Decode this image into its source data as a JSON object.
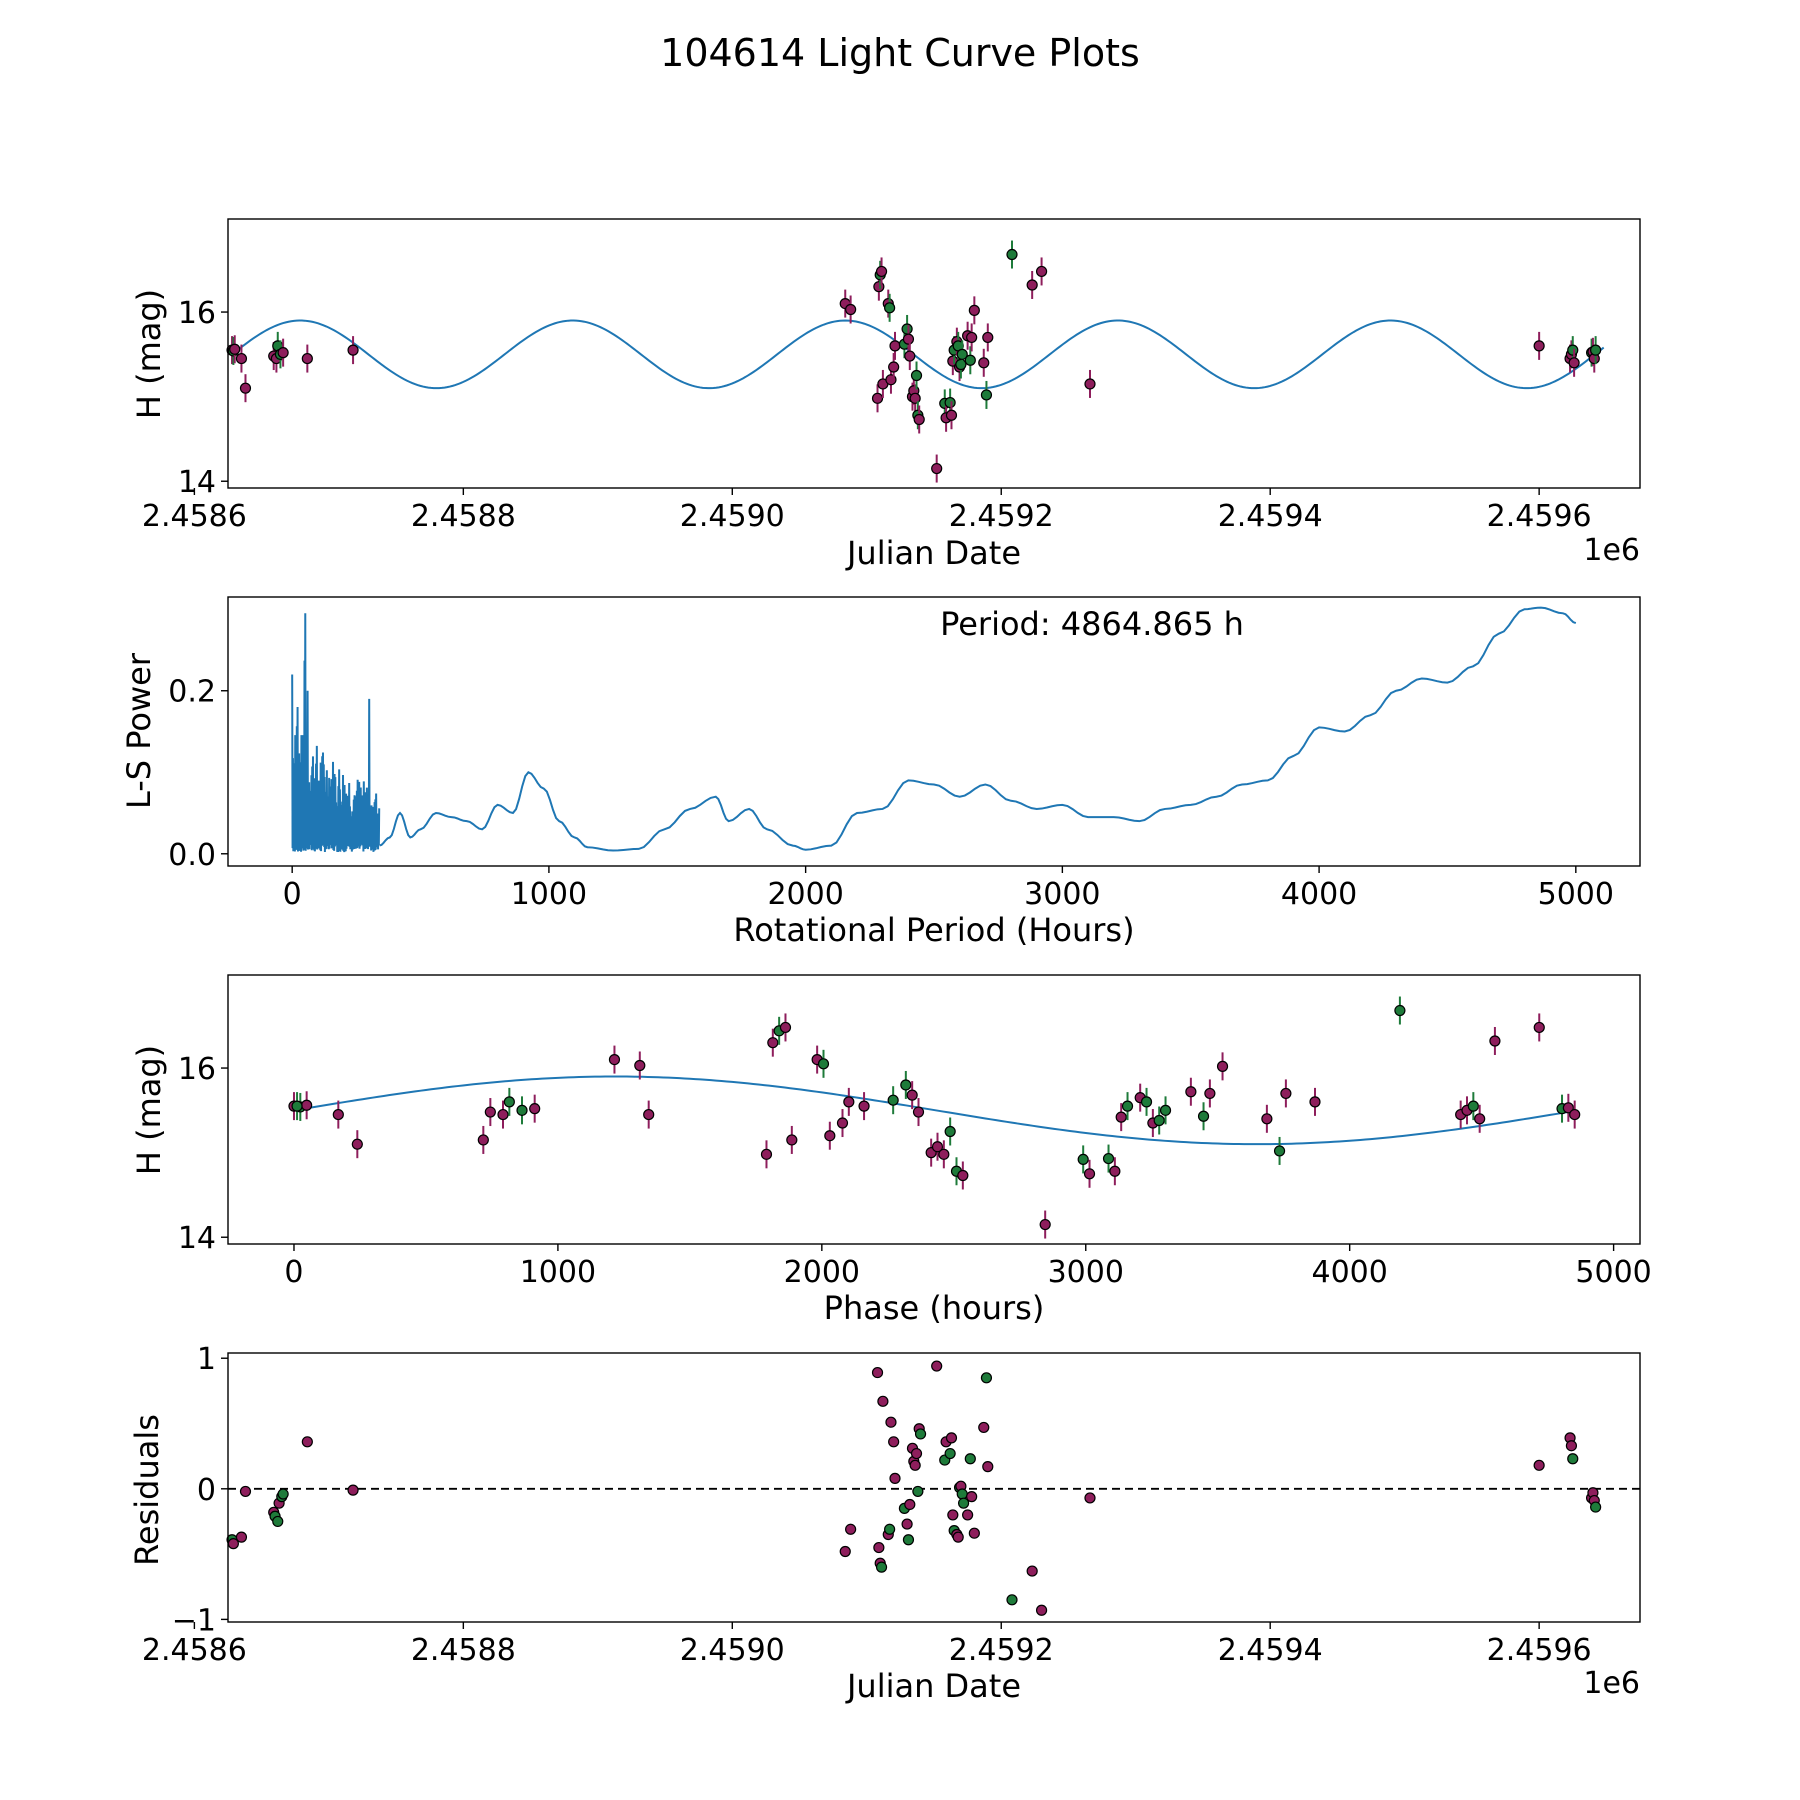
{
  "title": "104614 Light Curve Plots",
  "colors": {
    "line": "#1f77b4",
    "point_a": "#8e1e5c",
    "point_b": "#1e7b3a",
    "marker_edge": "#000000"
  },
  "chart_data": [
    {
      "id": "lightcurve",
      "type": "scatter",
      "xlabel": "Julian Date",
      "ylabel": "H (mag)",
      "x_offset_label": "1e6",
      "xlim": [
        2458.625,
        2459.675
      ],
      "ylim": [
        13.92,
        17.1
      ],
      "xticks": [
        2458.6,
        2458.8,
        2459.0,
        2459.2,
        2459.4,
        2459.6
      ],
      "xtick_labels": [
        "2.4586",
        "2.4588",
        "2.4590",
        "2.4592",
        "2.4594",
        "2.4596"
      ],
      "yticks": [
        14,
        16
      ],
      "ytick_labels": [
        "14",
        "16"
      ],
      "model": {
        "mean": 15.5,
        "amplitude": 0.4,
        "period_days": 202.7,
        "phase_zero_jd": 2458628.0,
        "phase_start_hours": 0,
        "x_range": [
          2458628.0,
          2459648.0
        ]
      },
      "points": [
        {
          "jd": 2458628,
          "h": 15.55,
          "band": "a"
        },
        {
          "jd": 2458629,
          "h": 15.54,
          "band": "b"
        },
        {
          "jd": 2458630,
          "h": 15.56,
          "band": "a"
        },
        {
          "jd": 2458635,
          "h": 15.45,
          "band": "a"
        },
        {
          "jd": 2458638,
          "h": 15.1,
          "band": "a"
        },
        {
          "jd": 2458659,
          "h": 15.48,
          "band": "a"
        },
        {
          "jd": 2458661,
          "h": 15.45,
          "band": "a"
        },
        {
          "jd": 2458662,
          "h": 15.6,
          "band": "b"
        },
        {
          "jd": 2458664,
          "h": 15.5,
          "band": "b"
        },
        {
          "jd": 2458666,
          "h": 15.52,
          "band": "a"
        },
        {
          "jd": 2458684,
          "h": 15.45,
          "band": "a"
        },
        {
          "jd": 2458718,
          "h": 15.55,
          "band": "a"
        },
        {
          "jd": 2459084,
          "h": 16.1,
          "band": "a"
        },
        {
          "jd": 2459088,
          "h": 16.03,
          "band": "a"
        },
        {
          "jd": 2459108,
          "h": 14.98,
          "band": "a"
        },
        {
          "jd": 2459109,
          "h": 16.3,
          "band": "a"
        },
        {
          "jd": 2459110,
          "h": 16.44,
          "band": "b"
        },
        {
          "jd": 2459111,
          "h": 16.48,
          "band": "a"
        },
        {
          "jd": 2459112,
          "h": 15.15,
          "band": "a"
        },
        {
          "jd": 2459116,
          "h": 16.1,
          "band": "a"
        },
        {
          "jd": 2459117,
          "h": 16.05,
          "band": "b"
        },
        {
          "jd": 2459118,
          "h": 15.2,
          "band": "a"
        },
        {
          "jd": 2459120,
          "h": 15.35,
          "band": "a"
        },
        {
          "jd": 2459121,
          "h": 15.6,
          "band": "a"
        },
        {
          "jd": 2459128,
          "h": 15.62,
          "band": "b"
        },
        {
          "jd": 2459130,
          "h": 15.8,
          "band": "b"
        },
        {
          "jd": 2459131,
          "h": 15.68,
          "band": "a"
        },
        {
          "jd": 2459132,
          "h": 15.48,
          "band": "a"
        },
        {
          "jd": 2459134,
          "h": 15.0,
          "band": "a"
        },
        {
          "jd": 2459135,
          "h": 15.07,
          "band": "a"
        },
        {
          "jd": 2459136,
          "h": 14.98,
          "band": "a"
        },
        {
          "jd": 2459137,
          "h": 15.25,
          "band": "b"
        },
        {
          "jd": 2459138,
          "h": 14.78,
          "band": "b"
        },
        {
          "jd": 2459139,
          "h": 14.73,
          "band": "a"
        },
        {
          "jd": 2459152,
          "h": 14.15,
          "band": "a"
        },
        {
          "jd": 2459158,
          "h": 14.92,
          "band": "b"
        },
        {
          "jd": 2459159,
          "h": 14.75,
          "band": "a"
        },
        {
          "jd": 2459162,
          "h": 14.93,
          "band": "b"
        },
        {
          "jd": 2459163,
          "h": 14.78,
          "band": "a"
        },
        {
          "jd": 2459164,
          "h": 15.42,
          "band": "a"
        },
        {
          "jd": 2459165,
          "h": 15.55,
          "band": "b"
        },
        {
          "jd": 2459167,
          "h": 15.65,
          "band": "a"
        },
        {
          "jd": 2459168,
          "h": 15.6,
          "band": "b"
        },
        {
          "jd": 2459169,
          "h": 15.35,
          "band": "a"
        },
        {
          "jd": 2459170,
          "h": 15.38,
          "band": "b"
        },
        {
          "jd": 2459171,
          "h": 15.5,
          "band": "b"
        },
        {
          "jd": 2459175,
          "h": 15.72,
          "band": "a"
        },
        {
          "jd": 2459177,
          "h": 15.43,
          "band": "b"
        },
        {
          "jd": 2459178,
          "h": 15.7,
          "band": "a"
        },
        {
          "jd": 2459180,
          "h": 16.02,
          "band": "a"
        },
        {
          "jd": 2459187,
          "h": 15.4,
          "band": "a"
        },
        {
          "jd": 2459189,
          "h": 15.02,
          "band": "b"
        },
        {
          "jd": 2459190,
          "h": 15.7,
          "band": "a"
        },
        {
          "jd": 2459208,
          "h": 16.68,
          "band": "b"
        },
        {
          "jd": 2459223,
          "h": 16.32,
          "band": "a"
        },
        {
          "jd": 2459230,
          "h": 16.48,
          "band": "a"
        },
        {
          "jd": 2459266,
          "h": 15.15,
          "band": "a"
        },
        {
          "jd": 2459600,
          "h": 15.6,
          "band": "a"
        },
        {
          "jd": 2459623,
          "h": 15.45,
          "band": "a"
        },
        {
          "jd": 2459624,
          "h": 15.5,
          "band": "a"
        },
        {
          "jd": 2459625,
          "h": 15.55,
          "band": "b"
        },
        {
          "jd": 2459626,
          "h": 15.4,
          "band": "a"
        },
        {
          "jd": 2459639,
          "h": 15.52,
          "band": "b"
        },
        {
          "jd": 2459640,
          "h": 15.53,
          "band": "a"
        },
        {
          "jd": 2459641,
          "h": 15.45,
          "band": "a"
        },
        {
          "jd": 2459642,
          "h": 15.55,
          "band": "b"
        }
      ]
    },
    {
      "id": "periodogram",
      "type": "line",
      "xlabel": "Rotational Period (Hours)",
      "ylabel": "L-S Power",
      "annotation": "Period: 4864.865 h",
      "xlim": [
        -250,
        5250
      ],
      "ylim": [
        -0.015,
        0.315
      ],
      "xticks": [
        0,
        1000,
        2000,
        3000,
        4000,
        5000
      ],
      "xtick_labels": [
        "0",
        "1000",
        "2000",
        "3000",
        "4000",
        "5000"
      ],
      "yticks": [
        0.0,
        0.2
      ],
      "ytick_labels": [
        "0.0",
        "0.2"
      ],
      "best_period_h": 4864.865,
      "power_anchors": [
        [
          340,
          0.01
        ],
        [
          380,
          0.02
        ],
        [
          420,
          0.05
        ],
        [
          460,
          0.02
        ],
        [
          500,
          0.03
        ],
        [
          560,
          0.05
        ],
        [
          620,
          0.045
        ],
        [
          680,
          0.04
        ],
        [
          740,
          0.03
        ],
        [
          800,
          0.06
        ],
        [
          860,
          0.05
        ],
        [
          920,
          0.1
        ],
        [
          980,
          0.08
        ],
        [
          1040,
          0.04
        ],
        [
          1100,
          0.02
        ],
        [
          1150,
          0.008
        ],
        [
          1250,
          0.004
        ],
        [
          1350,
          0.006
        ],
        [
          1450,
          0.03
        ],
        [
          1550,
          0.055
        ],
        [
          1650,
          0.07
        ],
        [
          1700,
          0.04
        ],
        [
          1780,
          0.055
        ],
        [
          1850,
          0.03
        ],
        [
          1950,
          0.01
        ],
        [
          2000,
          0.005
        ],
        [
          2100,
          0.01
        ],
        [
          2200,
          0.05
        ],
        [
          2300,
          0.055
        ],
        [
          2400,
          0.09
        ],
        [
          2500,
          0.085
        ],
        [
          2600,
          0.07
        ],
        [
          2700,
          0.085
        ],
        [
          2800,
          0.065
        ],
        [
          2900,
          0.055
        ],
        [
          3000,
          0.06
        ],
        [
          3100,
          0.045
        ],
        [
          3200,
          0.045
        ],
        [
          3300,
          0.04
        ],
        [
          3400,
          0.055
        ],
        [
          3500,
          0.06
        ],
        [
          3600,
          0.07
        ],
        [
          3700,
          0.085
        ],
        [
          3800,
          0.09
        ],
        [
          3900,
          0.12
        ],
        [
          4000,
          0.155
        ],
        [
          4100,
          0.15
        ],
        [
          4200,
          0.17
        ],
        [
          4300,
          0.2
        ],
        [
          4400,
          0.215
        ],
        [
          4500,
          0.21
        ],
        [
          4600,
          0.23
        ],
        [
          4700,
          0.27
        ],
        [
          4800,
          0.3
        ],
        [
          4864,
          0.302
        ],
        [
          4950,
          0.295
        ],
        [
          5000,
          0.283
        ]
      ],
      "noise_region": {
        "x_range": [
          0,
          340
        ],
        "peaks": [
          [
            0,
            0.22
          ],
          [
            20,
            0.18
          ],
          [
            50,
            0.295
          ],
          [
            60,
            0.2
          ],
          [
            300,
            0.19
          ]
        ]
      }
    },
    {
      "id": "folded",
      "type": "scatter",
      "xlabel": "Phase (hours)",
      "ylabel": "H (mag)",
      "xlim": [
        -250,
        5100
      ],
      "ylim": [
        13.92,
        17.1
      ],
      "xticks": [
        0,
        1000,
        2000,
        3000,
        4000,
        5000
      ],
      "xtick_labels": [
        "0",
        "1000",
        "2000",
        "3000",
        "4000",
        "5000"
      ],
      "yticks": [
        14,
        16
      ],
      "ytick_labels": [
        "14",
        "16"
      ],
      "points_from": "lightcurve",
      "period_h": 4864.865
    },
    {
      "id": "residuals",
      "type": "scatter",
      "xlabel": "Julian Date",
      "ylabel": "Residuals",
      "x_offset_label": "1e6",
      "xlim": [
        2458.625,
        2459.675
      ],
      "ylim": [
        -1.02,
        1.04
      ],
      "xticks": [
        2458.6,
        2458.8,
        2459.0,
        2459.2,
        2459.4,
        2459.6
      ],
      "xtick_labels": [
        "2.4586",
        "2.4588",
        "2.4590",
        "2.4592",
        "2.4594",
        "2.4596"
      ],
      "yticks": [
        -1,
        0,
        1
      ],
      "ytick_labels": [
        "−1",
        "0",
        "1"
      ],
      "zero_line": true,
      "points": [
        {
          "jd": 2458628,
          "r": -0.39,
          "band": "b"
        },
        {
          "jd": 2458629,
          "r": -0.42,
          "band": "a"
        },
        {
          "jd": 2458635,
          "r": -0.37,
          "band": "a"
        },
        {
          "jd": 2458638,
          "r": -0.02,
          "band": "a"
        },
        {
          "jd": 2458659,
          "r": -0.18,
          "band": "a"
        },
        {
          "jd": 2458660,
          "r": -0.21,
          "band": "b"
        },
        {
          "jd": 2458662,
          "r": -0.25,
          "band": "b"
        },
        {
          "jd": 2458663,
          "r": -0.11,
          "band": "a"
        },
        {
          "jd": 2458665,
          "r": -0.06,
          "band": "b"
        },
        {
          "jd": 2458666,
          "r": -0.04,
          "band": "b"
        },
        {
          "jd": 2458684,
          "r": 0.36,
          "band": "a"
        },
        {
          "jd": 2458718,
          "r": -0.01,
          "band": "a"
        },
        {
          "jd": 2459084,
          "r": -0.48,
          "band": "a"
        },
        {
          "jd": 2459088,
          "r": -0.31,
          "band": "a"
        },
        {
          "jd": 2459108,
          "r": 0.89,
          "band": "a"
        },
        {
          "jd": 2459109,
          "r": -0.45,
          "band": "a"
        },
        {
          "jd": 2459110,
          "r": -0.57,
          "band": "a"
        },
        {
          "jd": 2459111,
          "r": -0.6,
          "band": "b"
        },
        {
          "jd": 2459112,
          "r": 0.67,
          "band": "a"
        },
        {
          "jd": 2459116,
          "r": -0.35,
          "band": "a"
        },
        {
          "jd": 2459117,
          "r": -0.31,
          "band": "b"
        },
        {
          "jd": 2459118,
          "r": 0.51,
          "band": "a"
        },
        {
          "jd": 2459120,
          "r": 0.36,
          "band": "a"
        },
        {
          "jd": 2459121,
          "r": 0.08,
          "band": "a"
        },
        {
          "jd": 2459128,
          "r": -0.15,
          "band": "b"
        },
        {
          "jd": 2459130,
          "r": -0.27,
          "band": "a"
        },
        {
          "jd": 2459131,
          "r": -0.39,
          "band": "b"
        },
        {
          "jd": 2459132,
          "r": -0.12,
          "band": "a"
        },
        {
          "jd": 2459134,
          "r": 0.31,
          "band": "a"
        },
        {
          "jd": 2459135,
          "r": 0.21,
          "band": "a"
        },
        {
          "jd": 2459136,
          "r": 0.18,
          "band": "a"
        },
        {
          "jd": 2459137,
          "r": 0.27,
          "band": "a"
        },
        {
          "jd": 2459138,
          "r": -0.02,
          "band": "b"
        },
        {
          "jd": 2459139,
          "r": 0.46,
          "band": "a"
        },
        {
          "jd": 2459140,
          "r": 0.42,
          "band": "b"
        },
        {
          "jd": 2459152,
          "r": 0.94,
          "band": "a"
        },
        {
          "jd": 2459158,
          "r": 0.22,
          "band": "b"
        },
        {
          "jd": 2459159,
          "r": 0.36,
          "band": "a"
        },
        {
          "jd": 2459162,
          "r": 0.27,
          "band": "b"
        },
        {
          "jd": 2459163,
          "r": 0.39,
          "band": "a"
        },
        {
          "jd": 2459164,
          "r": -0.2,
          "band": "a"
        },
        {
          "jd": 2459165,
          "r": -0.32,
          "band": "b"
        },
        {
          "jd": 2459167,
          "r": -0.35,
          "band": "a"
        },
        {
          "jd": 2459168,
          "r": -0.37,
          "band": "a"
        },
        {
          "jd": 2459169,
          "r": 0.01,
          "band": "b"
        },
        {
          "jd": 2459170,
          "r": 0.02,
          "band": "a"
        },
        {
          "jd": 2459171,
          "r": -0.04,
          "band": "b"
        },
        {
          "jd": 2459172,
          "r": -0.11,
          "band": "b"
        },
        {
          "jd": 2459175,
          "r": -0.2,
          "band": "a"
        },
        {
          "jd": 2459177,
          "r": 0.23,
          "band": "b"
        },
        {
          "jd": 2459178,
          "r": -0.06,
          "band": "a"
        },
        {
          "jd": 2459180,
          "r": -0.34,
          "band": "a"
        },
        {
          "jd": 2459187,
          "r": 0.47,
          "band": "a"
        },
        {
          "jd": 2459189,
          "r": 0.85,
          "band": "b"
        },
        {
          "jd": 2459190,
          "r": 0.17,
          "band": "a"
        },
        {
          "jd": 2459208,
          "r": -0.85,
          "band": "b"
        },
        {
          "jd": 2459223,
          "r": -0.63,
          "band": "a"
        },
        {
          "jd": 2459230,
          "r": -0.93,
          "band": "a"
        },
        {
          "jd": 2459266,
          "r": -0.07,
          "band": "a"
        },
        {
          "jd": 2459600,
          "r": 0.18,
          "band": "a"
        },
        {
          "jd": 2459623,
          "r": 0.39,
          "band": "a"
        },
        {
          "jd": 2459624,
          "r": 0.33,
          "band": "a"
        },
        {
          "jd": 2459625,
          "r": 0.23,
          "band": "b"
        },
        {
          "jd": 2459639,
          "r": -0.07,
          "band": "a"
        },
        {
          "jd": 2459640,
          "r": -0.03,
          "band": "a"
        },
        {
          "jd": 2459641,
          "r": -0.09,
          "band": "a"
        },
        {
          "jd": 2459642,
          "r": -0.14,
          "band": "b"
        }
      ]
    }
  ]
}
